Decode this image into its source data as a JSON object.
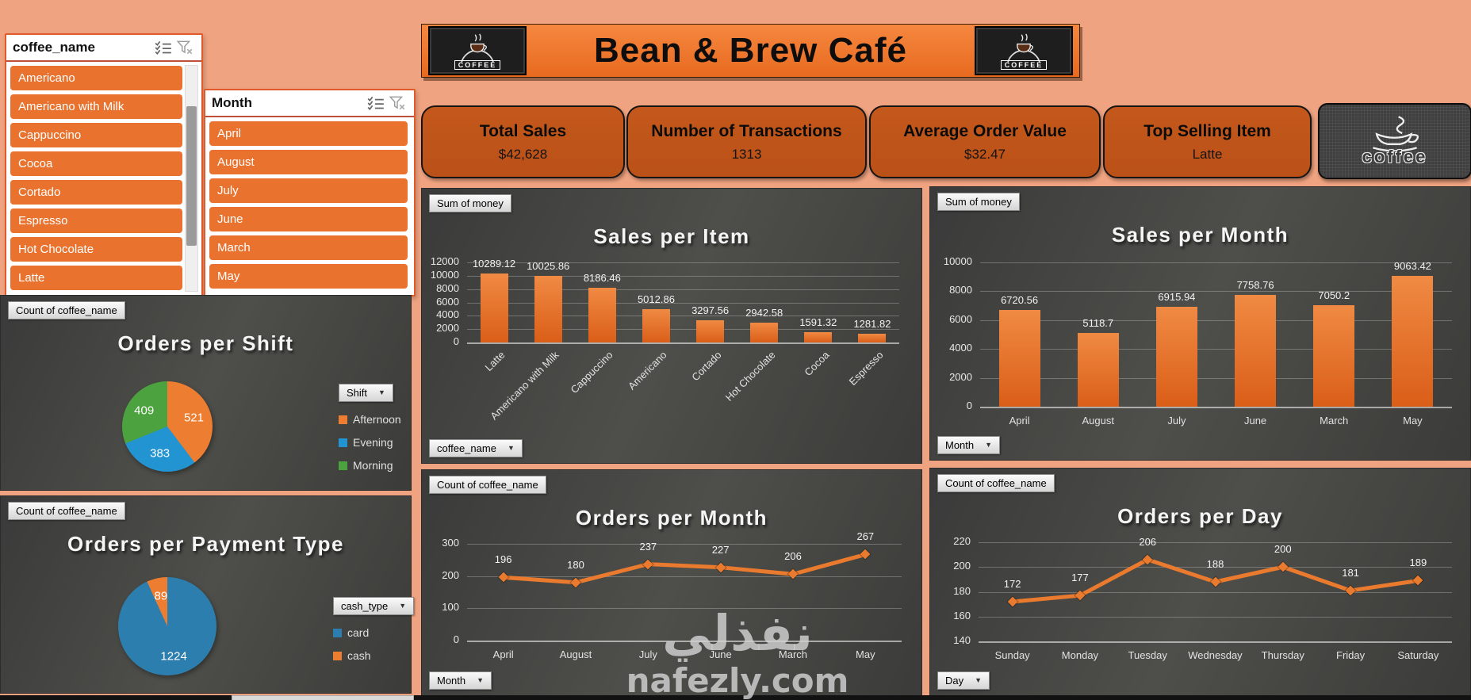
{
  "page": {
    "background": "#F0A380",
    "accent_orange": "#E9732E",
    "panel_dark": "#424240"
  },
  "icons": {
    "multiselect": "multi-select-checklist",
    "clear_filter": "funnel-with-x",
    "dropdown_caret": "▼",
    "coffee_cup": "coffee-cup"
  },
  "slicers": {
    "coffee": {
      "title": "coffee_name",
      "items": [
        "Americano",
        "Americano with Milk",
        "Cappuccino",
        "Cocoa",
        "Cortado",
        "Espresso",
        "Hot Chocolate",
        "Latte"
      ]
    },
    "month": {
      "title": "Month",
      "items": [
        "April",
        "August",
        "July",
        "June",
        "March",
        "May"
      ]
    }
  },
  "header": {
    "title": "Bean & Brew Café",
    "logo_badge_text": "COFFEE",
    "logo_card_text": "coffee"
  },
  "kpis": [
    {
      "label": "Total Sales",
      "value": "$42,628"
    },
    {
      "label": "Number of Transactions",
      "value": "1313"
    },
    {
      "label": "Average Order Value",
      "value": "$32.47"
    },
    {
      "label": "Top Selling Item",
      "value": "Latte"
    }
  ],
  "chart_data": {
    "sales_per_item": {
      "type": "bar",
      "title": "Sales per Item",
      "field_button": "Sum of money",
      "axis_button": "coffee_name",
      "categories": [
        "Latte",
        "Americano with Milk",
        "Cappuccino",
        "Americano",
        "Cortado",
        "Hot Chocolate",
        "Cocoa",
        "Espresso"
      ],
      "values": [
        10289.12,
        10025.86,
        8186.46,
        5012.86,
        3297.56,
        2942.58,
        1591.32,
        1281.82
      ],
      "ylim": [
        0,
        12000
      ],
      "ytick_step": 2000,
      "bar_color": "#E2611C",
      "grid": true,
      "legend": "none"
    },
    "sales_per_month": {
      "type": "bar",
      "title": "Sales per Month",
      "field_button": "Sum of money",
      "axis_button": "Month",
      "categories": [
        "April",
        "August",
        "July",
        "June",
        "March",
        "May"
      ],
      "values": [
        6720.56,
        5118.7,
        6915.94,
        7758.76,
        7050.2,
        9063.42
      ],
      "ylim": [
        0,
        10000
      ],
      "ytick_step": 2000,
      "bar_color": "#E2611C",
      "grid": true,
      "legend": "none"
    },
    "orders_per_shift": {
      "type": "pie",
      "title": "Orders per Shift",
      "field_button": "Count of coffee_name",
      "legend_button": "Shift",
      "slices": [
        {
          "label": "Afternoon",
          "value": 521,
          "color": "#ED7D31"
        },
        {
          "label": "Evening",
          "value": 383,
          "color": "#2394D2"
        },
        {
          "label": "Morning",
          "value": 409,
          "color": "#4BA23E"
        }
      ],
      "legend": "right"
    },
    "orders_per_payment_type": {
      "type": "pie",
      "title": "Orders per Payment Type",
      "field_button": "Count of coffee_name",
      "legend_button": "cash_type",
      "slices": [
        {
          "label": "card",
          "value": 1224,
          "color": "#2C7EAE"
        },
        {
          "label": "cash",
          "value": 89,
          "color": "#ED7D31"
        }
      ],
      "legend": "right"
    },
    "orders_per_month": {
      "type": "line",
      "title": "Orders per Month",
      "field_button": "Count of coffee_name",
      "axis_button": "Month",
      "categories": [
        "April",
        "August",
        "July",
        "June",
        "March",
        "May"
      ],
      "values": [
        196,
        180,
        237,
        227,
        206,
        267
      ],
      "ylim": [
        0,
        300
      ],
      "ytick_step": 100,
      "line_color": "#E97A2E",
      "grid": true,
      "legend": "none"
    },
    "orders_per_day": {
      "type": "line",
      "title": "Orders per Day",
      "field_button": "Count of coffee_name",
      "axis_button": "Day",
      "categories": [
        "Sunday",
        "Monday",
        "Tuesday",
        "Wednesday",
        "Thursday",
        "Friday",
        "Saturday"
      ],
      "values": [
        172,
        177,
        206,
        188,
        200,
        181,
        189
      ],
      "ylim": [
        140,
        220
      ],
      "ytick_step": 20,
      "line_color": "#E97A2E",
      "grid": true,
      "legend": "none"
    }
  },
  "watermark": {
    "arabic": "نفذلي",
    "latin": "nafezly.com"
  }
}
